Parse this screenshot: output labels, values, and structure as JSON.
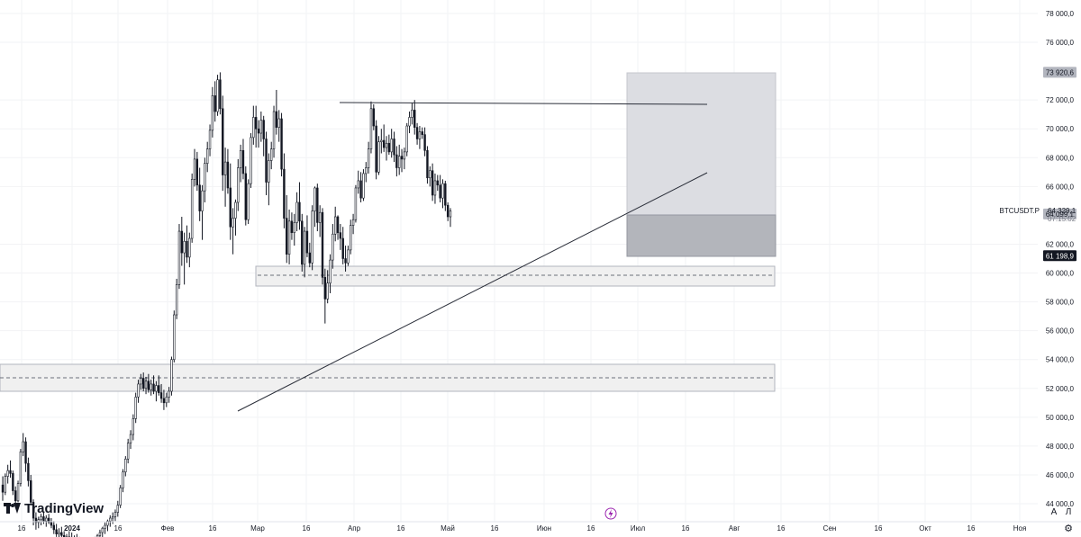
{
  "chart_data": {
    "type": "candlestick",
    "symbol": "BTCUSDT.P",
    "last_price": "64 329,1",
    "countdown": "07:15:02",
    "price_scale": {
      "min": 44000,
      "max": 78000,
      "ticks": [
        {
          "value": 78000,
          "label": "78 000,0"
        },
        {
          "value": 76000,
          "label": "76 000,0"
        },
        {
          "value": 72000,
          "label": "72 000,0"
        },
        {
          "value": 70000,
          "label": "70 000,0"
        },
        {
          "value": 68000,
          "label": "68 000,0"
        },
        {
          "value": 66000,
          "label": "66 000,0"
        },
        {
          "value": 62000,
          "label": "62 000,0"
        },
        {
          "value": 60000,
          "label": "60 000,0"
        },
        {
          "value": 58000,
          "label": "58 000,0"
        },
        {
          "value": 56000,
          "label": "56 000,0"
        },
        {
          "value": 54000,
          "label": "54 000,0"
        },
        {
          "value": 52000,
          "label": "52 000,0"
        },
        {
          "value": 50000,
          "label": "50 000,0"
        },
        {
          "value": 48000,
          "label": "48 000,0"
        },
        {
          "value": 46000,
          "label": "46 000,0"
        },
        {
          "value": 44000,
          "label": "44 000,0"
        }
      ]
    },
    "price_labels": [
      {
        "value": 73920.6,
        "label": "73 920,6",
        "bg": "#b2b5be",
        "fg": "#131722"
      },
      {
        "value": 64099.1,
        "label": "64 099,1",
        "bg": "#b2b5be",
        "fg": "#131722"
      },
      {
        "value": 61198.9,
        "label": "61 198,9",
        "bg": "#131722",
        "fg": "#ffffff"
      }
    ],
    "time_scale": [
      {
        "label": "16"
      },
      {
        "label": "2024"
      },
      {
        "label": "16"
      },
      {
        "label": "Фев"
      },
      {
        "label": "16"
      },
      {
        "label": "Мар"
      },
      {
        "label": "16"
      },
      {
        "label": "Апр"
      },
      {
        "label": "16"
      },
      {
        "label": "Май"
      },
      {
        "label": "16"
      },
      {
        "label": "Июн"
      },
      {
        "label": "16"
      },
      {
        "label": "Июл"
      },
      {
        "label": "16"
      },
      {
        "label": "Авг"
      },
      {
        "label": "16"
      },
      {
        "label": "Сен"
      },
      {
        "label": "16"
      },
      {
        "label": "Окт"
      },
      {
        "label": "16"
      },
      {
        "label": "Ноя"
      }
    ],
    "candles": [
      [
        45300,
        45900,
        44200,
        44800
      ],
      [
        44800,
        46100,
        44600,
        45900
      ],
      [
        45900,
        46700,
        45400,
        46300
      ],
      [
        46300,
        47000,
        45800,
        46100
      ],
      [
        46100,
        46300,
        44600,
        44900
      ],
      [
        44900,
        45200,
        43900,
        44200
      ],
      [
        44200,
        45600,
        44100,
        45400
      ],
      [
        45400,
        47800,
        45200,
        47600
      ],
      [
        47600,
        48900,
        47300,
        48300
      ],
      [
        48300,
        48600,
        46200,
        46800
      ],
      [
        46800,
        47200,
        45200,
        45600
      ],
      [
        45600,
        46000,
        43900,
        44100
      ],
      [
        44100,
        44300,
        42500,
        43000
      ],
      [
        43000,
        43400,
        42200,
        42700
      ],
      [
        42700,
        43100,
        42300,
        42900
      ],
      [
        42900,
        43300,
        42500,
        43100
      ],
      [
        43100,
        43400,
        42600,
        42800
      ],
      [
        42800,
        43200,
        42400,
        43000
      ],
      [
        43000,
        43300,
        42600,
        42700
      ],
      [
        42700,
        43000,
        42300,
        42500
      ],
      [
        42500,
        42800,
        41900,
        42200
      ],
      [
        42200,
        42600,
        41700,
        41900
      ],
      [
        41900,
        42300,
        41500,
        42000
      ],
      [
        42000,
        42400,
        41600,
        41800
      ],
      [
        41800,
        42100,
        41300,
        41500
      ],
      [
        41500,
        41900,
        41100,
        41700
      ],
      [
        41700,
        42100,
        41300,
        41600
      ],
      [
        41600,
        42000,
        41200,
        41400
      ],
      [
        41400,
        41800,
        41000,
        41500
      ],
      [
        41500,
        41900,
        41100,
        41300
      ],
      [
        41300,
        41700,
        40900,
        41200
      ],
      [
        41200,
        41600,
        40800,
        41100
      ],
      [
        41100,
        41500,
        40700,
        41000
      ],
      [
        41000,
        41300,
        40600,
        40900
      ],
      [
        40900,
        41300,
        40500,
        41100
      ],
      [
        41100,
        41500,
        40700,
        41300
      ],
      [
        41300,
        41700,
        40900,
        41500
      ],
      [
        41500,
        41900,
        41100,
        41800
      ],
      [
        41800,
        42200,
        41400,
        42000
      ],
      [
        42000,
        42400,
        41600,
        42300
      ],
      [
        42300,
        42700,
        41900,
        42500
      ],
      [
        42500,
        42900,
        42100,
        42800
      ],
      [
        42800,
        43200,
        42400,
        43000
      ],
      [
        43000,
        43400,
        42600,
        43100
      ],
      [
        43100,
        43600,
        42800,
        43400
      ],
      [
        43400,
        44200,
        43100,
        43900
      ],
      [
        43900,
        45300,
        43700,
        45100
      ],
      [
        45100,
        46400,
        44800,
        46200
      ],
      [
        46200,
        47300,
        45900,
        47100
      ],
      [
        47100,
        48500,
        46800,
        48200
      ],
      [
        48200,
        49100,
        47800,
        48800
      ],
      [
        48800,
        50200,
        48400,
        49900
      ],
      [
        49900,
        51700,
        49600,
        51400
      ],
      [
        51400,
        52600,
        51000,
        52300
      ],
      [
        52300,
        53000,
        51900,
        52700
      ],
      [
        52700,
        53100,
        51800,
        52000
      ],
      [
        52000,
        52800,
        51600,
        52500
      ],
      [
        52500,
        53000,
        51700,
        51900
      ],
      [
        51900,
        52600,
        51500,
        52300
      ],
      [
        52300,
        52900,
        51600,
        51800
      ],
      [
        51800,
        52500,
        51100,
        52200
      ],
      [
        52200,
        52900,
        51500,
        51700
      ],
      [
        51700,
        52300,
        51000,
        51300
      ],
      [
        51300,
        51900,
        50500,
        51000
      ],
      [
        51000,
        51700,
        50700,
        51400
      ],
      [
        51400,
        52100,
        51000,
        51800
      ],
      [
        51800,
        54200,
        51500,
        54000
      ],
      [
        54000,
        57400,
        53800,
        57100
      ],
      [
        57100,
        59600,
        56800,
        59200
      ],
      [
        59200,
        63400,
        58900,
        62900
      ],
      [
        62900,
        63900,
        60500,
        61400
      ],
      [
        61400,
        62800,
        59200,
        62200
      ],
      [
        62200,
        63300,
        60700,
        61100
      ],
      [
        61100,
        62800,
        60400,
        62400
      ],
      [
        62400,
        66900,
        62100,
        66500
      ],
      [
        66500,
        68600,
        66000,
        67900
      ],
      [
        67900,
        68400,
        65700,
        66100
      ],
      [
        66100,
        67300,
        63600,
        64300
      ],
      [
        64300,
        66100,
        62300,
        65700
      ],
      [
        65700,
        68000,
        64900,
        67600
      ],
      [
        67600,
        69100,
        67000,
        68600
      ],
      [
        68600,
        70300,
        68100,
        69900
      ],
      [
        69900,
        72900,
        69400,
        72300
      ],
      [
        72300,
        73300,
        70500,
        71200
      ],
      [
        71200,
        73750,
        70900,
        73400
      ],
      [
        73400,
        73920,
        71000,
        71400
      ],
      [
        71400,
        72300,
        65700,
        66800
      ],
      [
        66800,
        68700,
        64600,
        67700
      ],
      [
        67700,
        68600,
        65500,
        65900
      ],
      [
        65900,
        67600,
        62300,
        63200
      ],
      [
        63200,
        64500,
        61300,
        63800
      ],
      [
        63800,
        65100,
        62600,
        64900
      ],
      [
        64900,
        67900,
        64300,
        67300
      ],
      [
        67300,
        68900,
        66300,
        68500
      ],
      [
        68500,
        69300,
        66500,
        66900
      ],
      [
        66900,
        67400,
        63300,
        63700
      ],
      [
        63700,
        66500,
        63400,
        66200
      ],
      [
        66200,
        69700,
        65900,
        69400
      ],
      [
        69400,
        71600,
        68900,
        70800
      ],
      [
        70800,
        71600,
        68700,
        70000
      ],
      [
        70000,
        70600,
        68700,
        69700
      ],
      [
        69700,
        71200,
        69100,
        70600
      ],
      [
        70600,
        70900,
        68100,
        69300
      ],
      [
        69300,
        69800,
        65400,
        66300
      ],
      [
        66300,
        68300,
        64700,
        67800
      ],
      [
        67800,
        69100,
        67200,
        68600
      ],
      [
        68600,
        71600,
        68000,
        71200
      ],
      [
        71200,
        72700,
        69600,
        70100
      ],
      [
        70100,
        71300,
        69100,
        70700
      ],
      [
        70700,
        71100,
        66700,
        67200
      ],
      [
        67200,
        68300,
        63100,
        63800
      ],
      [
        63800,
        65400,
        60700,
        61300
      ],
      [
        61300,
        64400,
        60600,
        63600
      ],
      [
        63600,
        64200,
        62300,
        62800
      ],
      [
        62800,
        64100,
        61900,
        63500
      ],
      [
        63500,
        65600,
        62900,
        64900
      ],
      [
        64900,
        66300,
        63000,
        63600
      ],
      [
        63600,
        64100,
        60100,
        60600
      ],
      [
        60600,
        63200,
        59700,
        62900
      ],
      [
        62900,
        64000,
        61100,
        61400
      ],
      [
        61400,
        62100,
        60400,
        60700
      ],
      [
        60700,
        64700,
        60200,
        64300
      ],
      [
        64300,
        66000,
        63200,
        65900
      ],
      [
        65900,
        66200,
        62900,
        63500
      ],
      [
        63500,
        64700,
        62500,
        64200
      ],
      [
        64200,
        64500,
        59200,
        59700
      ],
      [
        59700,
        60300,
        56500,
        58200
      ],
      [
        58200,
        60200,
        57900,
        59300
      ],
      [
        59300,
        61300,
        58600,
        60900
      ],
      [
        60900,
        63400,
        60300,
        62700
      ],
      [
        62700,
        64600,
        62200,
        63900
      ],
      [
        63900,
        64000,
        62300,
        62800
      ],
      [
        62800,
        63400,
        61600,
        62400
      ],
      [
        62400,
        63200,
        60600,
        61000
      ],
      [
        61000,
        61900,
        60100,
        60700
      ],
      [
        60700,
        61900,
        60500,
        61600
      ],
      [
        61600,
        63700,
        61300,
        63300
      ],
      [
        63300,
        64100,
        62700,
        63700
      ],
      [
        63700,
        66100,
        63500,
        65900
      ],
      [
        65900,
        67100,
        65500,
        66400
      ],
      [
        66400,
        67000,
        64900,
        65200
      ],
      [
        65200,
        67200,
        65000,
        66900
      ],
      [
        66900,
        67700,
        66300,
        67300
      ],
      [
        67300,
        69100,
        66900,
        68600
      ],
      [
        68600,
        71900,
        68300,
        71400
      ],
      [
        71400,
        71700,
        69900,
        70200
      ],
      [
        70200,
        70600,
        66500,
        67000
      ],
      [
        67000,
        69500,
        66800,
        69100
      ],
      [
        69100,
        70000,
        68300,
        69200
      ],
      [
        69200,
        70300,
        68400,
        68700
      ],
      [
        68700,
        69500,
        67800,
        69000
      ],
      [
        69000,
        69600,
        68200,
        68400
      ],
      [
        68400,
        70000,
        68000,
        69300
      ],
      [
        69300,
        69800,
        67700,
        68200
      ],
      [
        68200,
        68800,
        66700,
        67300
      ],
      [
        67300,
        68900,
        66800,
        68100
      ],
      [
        68100,
        68600,
        67000,
        67900
      ],
      [
        67900,
        68700,
        67200,
        68400
      ],
      [
        68400,
        70400,
        68100,
        70200
      ],
      [
        70200,
        71200,
        69700,
        70800
      ],
      [
        70800,
        71800,
        70300,
        71300
      ],
      [
        71300,
        72000,
        69600,
        70100
      ],
      [
        70100,
        70400,
        68900,
        69300
      ],
      [
        69300,
        70200,
        68600,
        69800
      ],
      [
        69800,
        70100,
        69300,
        69600
      ],
      [
        69600,
        70100,
        68100,
        68500
      ],
      [
        68500,
        68800,
        66200,
        66600
      ],
      [
        66600,
        67400,
        66000,
        67100
      ],
      [
        67100,
        67600,
        65000,
        65400
      ],
      [
        65400,
        66900,
        64800,
        66400
      ],
      [
        66400,
        66800,
        65700,
        66100
      ],
      [
        66100,
        66800,
        64900,
        65200
      ],
      [
        65200,
        66500,
        64500,
        66200
      ],
      [
        66200,
        66400,
        64300,
        64700
      ],
      [
        64700,
        64900,
        63600,
        63900
      ],
      [
        63900,
        64500,
        63200,
        64300
      ]
    ]
  },
  "branding": {
    "name": "TradingView"
  },
  "controls": {
    "auto_label": "A",
    "log_label": "Л"
  }
}
